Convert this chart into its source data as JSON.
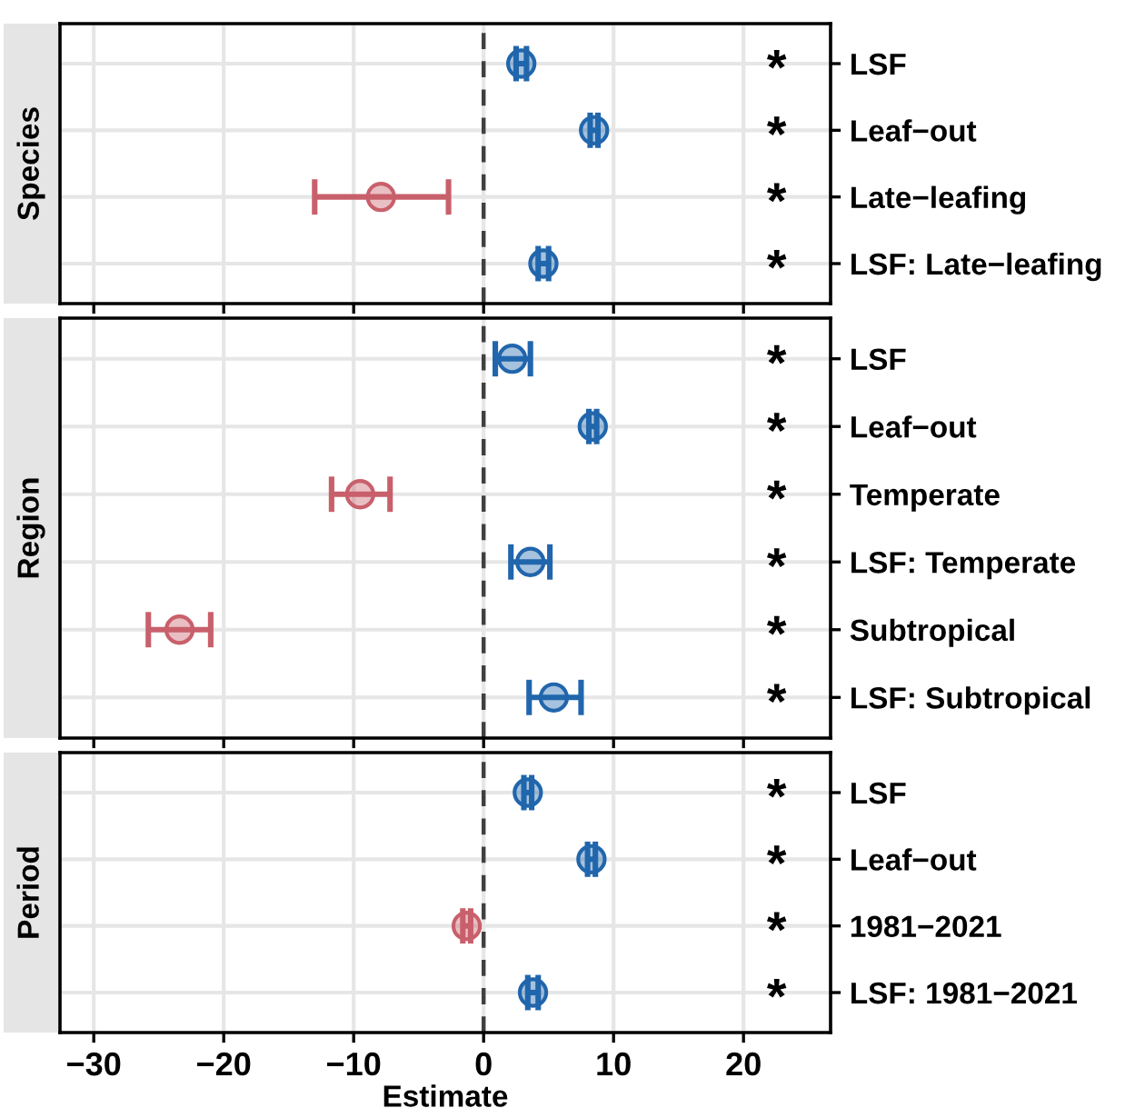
{
  "chart_data": [
    {
      "type": "scatter",
      "orientation": "horizontal",
      "ylabel": "Species",
      "categories": [
        "LSF",
        "Leaf−out",
        "Late−leafing",
        "LSF: Late−leafing"
      ],
      "values": [
        2.9,
        8.5,
        -7.9,
        4.6
      ],
      "errors": [
        0.4,
        0.3,
        [
          -13.0,
          -2.7
        ],
        0.4
      ],
      "colors": [
        "#2166ac",
        "#2166ac",
        "#c8606b",
        "#2166ac"
      ],
      "xlim": [
        -32.6,
        26.7
      ],
      "xticks": [
        -30,
        -20,
        -10,
        0,
        10,
        20
      ],
      "tick_labels": "y",
      "ref_lines": [
        {
          "axis": "x",
          "value": 0,
          "color": "#404040",
          "line_style": "dashed"
        }
      ],
      "annotations": [
        "*",
        "*",
        "*",
        "*"
      ],
      "grid": true,
      "marker": "circle"
    },
    {
      "type": "scatter",
      "orientation": "horizontal",
      "ylabel": "Region",
      "categories": [
        "LSF",
        "Leaf−out",
        "Temperate",
        "LSF: Temperate",
        "Subtropical",
        "LSF: Subtropical"
      ],
      "values": [
        2.2,
        8.4,
        -9.5,
        3.6,
        -23.4,
        5.4
      ],
      "errors": [
        [
          0.9,
          3.6
        ],
        0.3,
        [
          -11.7,
          -7.2
        ],
        [
          2.1,
          5.1
        ],
        [
          -25.8,
          -21.0
        ],
        [
          3.5,
          7.5
        ]
      ],
      "colors": [
        "#2166ac",
        "#2166ac",
        "#c8606b",
        "#2166ac",
        "#c8606b",
        "#2166ac"
      ],
      "xlim": [
        -32.6,
        26.7
      ],
      "xticks": [
        -30,
        -20,
        -10,
        0,
        10,
        20
      ],
      "tick_labels": "y",
      "ref_lines": [
        {
          "axis": "x",
          "value": 0,
          "color": "#404040",
          "line_style": "dashed"
        }
      ],
      "annotations": [
        "*",
        "*",
        "*",
        "*",
        "*",
        "*"
      ],
      "grid": true,
      "marker": "circle"
    },
    {
      "type": "scatter",
      "orientation": "horizontal",
      "ylabel": "Period",
      "xlabel": "Estimate",
      "categories": [
        "LSF",
        "Leaf−out",
        "1981−2021",
        "LSF: 1981−2021"
      ],
      "values": [
        3.4,
        8.3,
        -1.3,
        3.8
      ],
      "errors": [
        0.3,
        0.3,
        0.3,
        0.4
      ],
      "colors": [
        "#2166ac",
        "#2166ac",
        "#c8606b",
        "#2166ac"
      ],
      "xlim": [
        -32.6,
        26.7
      ],
      "xticks": [
        -30,
        -20,
        -10,
        0,
        10,
        20
      ],
      "ref_lines": [
        {
          "axis": "x",
          "value": 0,
          "color": "#404040",
          "line_style": "dashed"
        }
      ],
      "annotations": [
        "*",
        "*",
        "*",
        "*"
      ],
      "grid": true,
      "marker": "circle"
    }
  ]
}
